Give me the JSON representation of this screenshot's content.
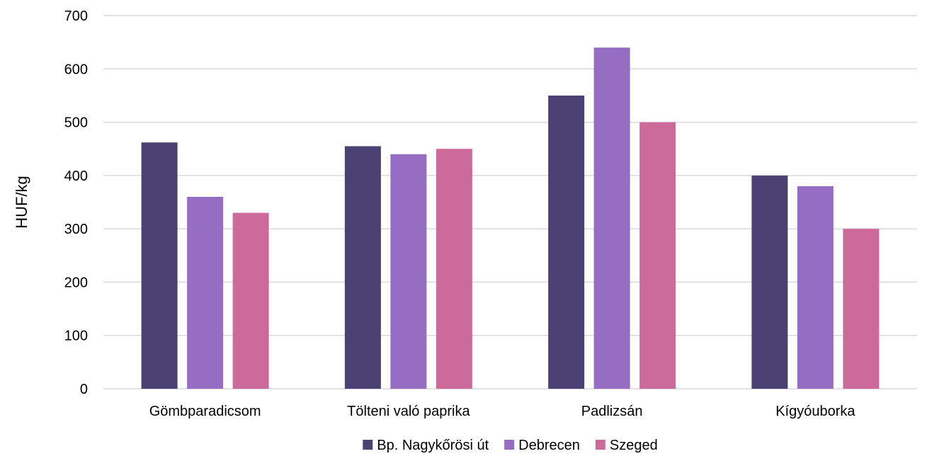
{
  "chart_data": {
    "type": "bar",
    "ylabel": "HUF/kg",
    "xlabel": "",
    "ylim": [
      0,
      700
    ],
    "yticks": [
      0,
      100,
      200,
      300,
      400,
      500,
      600,
      700
    ],
    "grid": true,
    "legend_position": "bottom",
    "categories": [
      "Gömbparadicsom",
      "Tölteni való paprika",
      "Padlizsán",
      "Kígyóuborka"
    ],
    "series": [
      {
        "name": "Bp. Nagykőrösi út",
        "color": "#4b4273",
        "values": [
          462,
          455,
          550,
          400
        ]
      },
      {
        "name": "Debrecen",
        "color": "#956dc2",
        "values": [
          360,
          440,
          640,
          380
        ]
      },
      {
        "name": "Szeged",
        "color": "#cc6a99",
        "values": [
          330,
          450,
          500,
          300
        ]
      }
    ]
  }
}
